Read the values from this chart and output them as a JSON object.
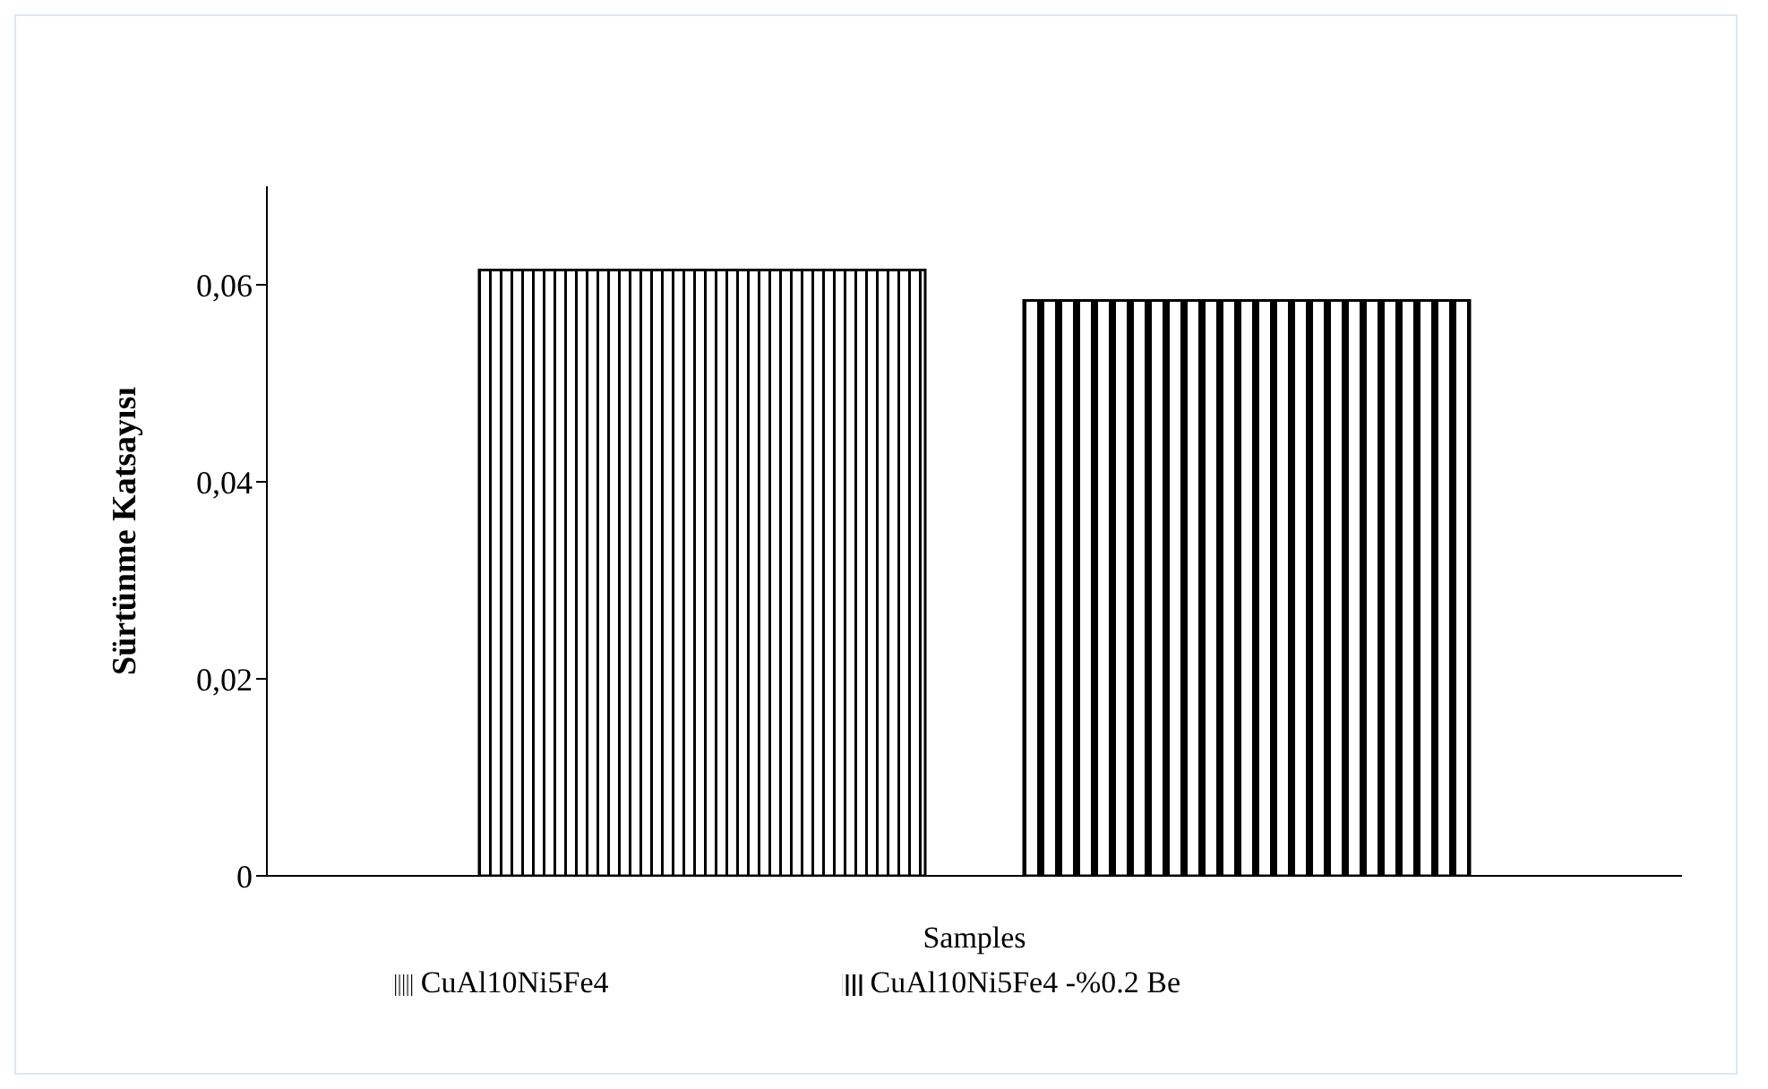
{
  "chart_data": {
    "type": "bar",
    "xlabel": "Samples",
    "ylabel": "Sürtünme Katsayısı",
    "categories": [
      null
    ],
    "series": [
      {
        "name": "CuAl10Ni5Fe4",
        "color": "#000000",
        "values": [
          0.0615
        ]
      },
      {
        "name": "CuAl10Ni5Fe4 -%0.2 Be",
        "color": "#000000",
        "values": [
          0.0584
        ]
      }
    ],
    "ylim": [
      0,
      0.07
    ],
    "yticks": [
      {
        "value": 0,
        "label": "0"
      },
      {
        "value": 0.02,
        "label": "0,02"
      },
      {
        "value": 0.04,
        "label": "0,04"
      },
      {
        "value": 0.06,
        "label": "0,06"
      }
    ],
    "grid": false,
    "legend": "bottom"
  }
}
